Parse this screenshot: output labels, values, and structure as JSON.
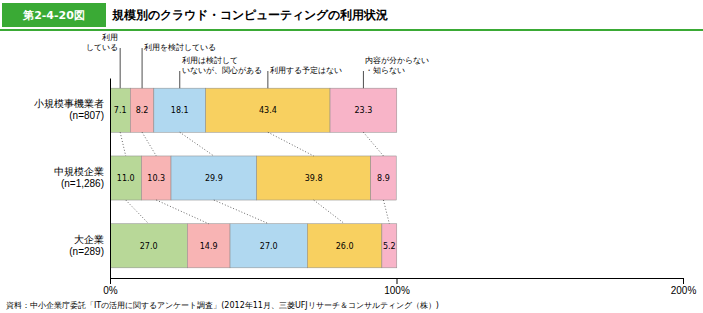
{
  "chart_data": {
    "type": "bar",
    "orientation": "horizontal",
    "stacked": true,
    "data_labels": true,
    "title": "規模別のクラウド・コンピューティングの利用状況",
    "annotations": [
      "第2-4-20図",
      "資料：中小企業庁委託「ITの活用に関するアンケート調査」(2012年11月、三菱UFJリサーチ＆コンサルティング（株）)"
    ],
    "categories": [
      "小規模事機業者\n(n=807)",
      "中規模企業\n(n=1,286)",
      "大企業\n(n=289)"
    ],
    "series": [
      {
        "name": "利用\nしている",
        "color": "#b8d898",
        "values": [
          7.1,
          11.0,
          27.0
        ],
        "value_labels": [
          "7.1",
          "11.0",
          "27.0"
        ]
      },
      {
        "name": "利用を検討している",
        "color": "#f8b4b4",
        "values": [
          8.2,
          10.3,
          14.9
        ]
      },
      {
        "name": "利用は検討して\nいないが、関心がある",
        "color": "#b0d8f0",
        "values": [
          18.1,
          29.9,
          27.0
        ],
        "value_labels": [
          "18.1",
          "29.9",
          "27.0"
        ]
      },
      {
        "name": "利用する予定はない",
        "color": "#f8d060",
        "values": [
          43.4,
          39.8,
          26.0
        ],
        "value_labels": [
          "43.4",
          "39.8",
          "26.0"
        ]
      },
      {
        "name": "内容が分からない\n・知らない",
        "color": "#f8b4c8",
        "values": [
          23.3,
          8.9,
          5.2
        ]
      }
    ],
    "xlim": [
      0,
      200
    ],
    "xticks": [
      {
        "value": 0,
        "label": "0%"
      },
      {
        "value": 100,
        "label": "100%"
      },
      {
        "value": 200,
        "label": "200%"
      }
    ]
  }
}
